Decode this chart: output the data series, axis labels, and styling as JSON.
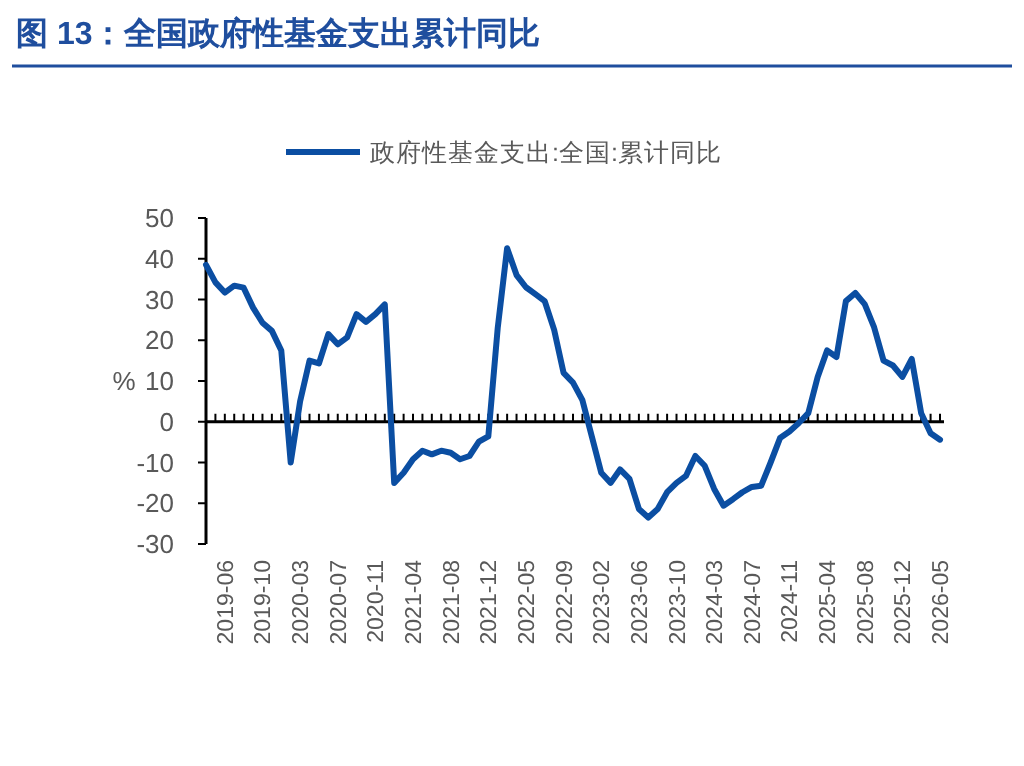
{
  "chart_data": {
    "type": "line",
    "title": "图 13：全国政府性基金支出累计同比",
    "ylabel": "%",
    "legend": "top",
    "categories": [
      null,
      null,
      "2019-06",
      null,
      null,
      null,
      "2019-10",
      null,
      null,
      null,
      "2020-03",
      null,
      null,
      null,
      "2020-07",
      null,
      null,
      null,
      "2020-11",
      null,
      null,
      null,
      "2021-04",
      null,
      null,
      null,
      "2021-08",
      null,
      null,
      null,
      "2021-12",
      null,
      null,
      null,
      "2022-05",
      null,
      null,
      null,
      "2022-09",
      null,
      null,
      null,
      "2023-02",
      null,
      null,
      null,
      "2023-06",
      null,
      null,
      null,
      "2023-10",
      null,
      null,
      null,
      "2024-03",
      null,
      null,
      null,
      "2024-07",
      null,
      null,
      null,
      "2024-11",
      null,
      null,
      null,
      "2025-04",
      null,
      null,
      null,
      "2025-08",
      null,
      null,
      null,
      "2025-12",
      null,
      null,
      null,
      "2026-05"
    ],
    "series": [
      {
        "name": "政府性基金支出:全国:累计同比",
        "color": "#0b4ea2",
        "values": [
          38.5,
          34.2,
          31.7,
          33.4,
          32.9,
          28,
          24.3,
          22.3,
          17.5,
          -10,
          5,
          15,
          14.3,
          21.5,
          19,
          20.7,
          26.4,
          24.5,
          26.4,
          28.8,
          -15,
          -12.5,
          -9.2,
          -7.1,
          -8,
          -7.1,
          -7.6,
          -9.2,
          -8.4,
          -4.9,
          -3.6,
          23,
          42.6,
          36,
          33,
          31.3,
          29.6,
          22.5,
          12,
          9.6,
          5.3,
          -3.6,
          -12.5,
          -15,
          -11.7,
          -14,
          -21.4,
          -23.5,
          -21.4,
          -17.3,
          -15,
          -13.3,
          -8.4,
          -10.8,
          -16.5,
          -20.6,
          -19,
          -17.3,
          -16,
          -15.7,
          -10,
          -4,
          -2.4,
          -0.3,
          2.1,
          11,
          17.5,
          15.9,
          29.6,
          31.6,
          28.8,
          23.2,
          15,
          13.8,
          11,
          15.4,
          2.1,
          -2.8,
          -4.4
        ]
      }
    ],
    "ylim": [
      -30,
      50
    ],
    "yticks": [
      -30,
      -20,
      -10,
      0,
      10,
      20,
      30,
      40,
      50
    ]
  }
}
